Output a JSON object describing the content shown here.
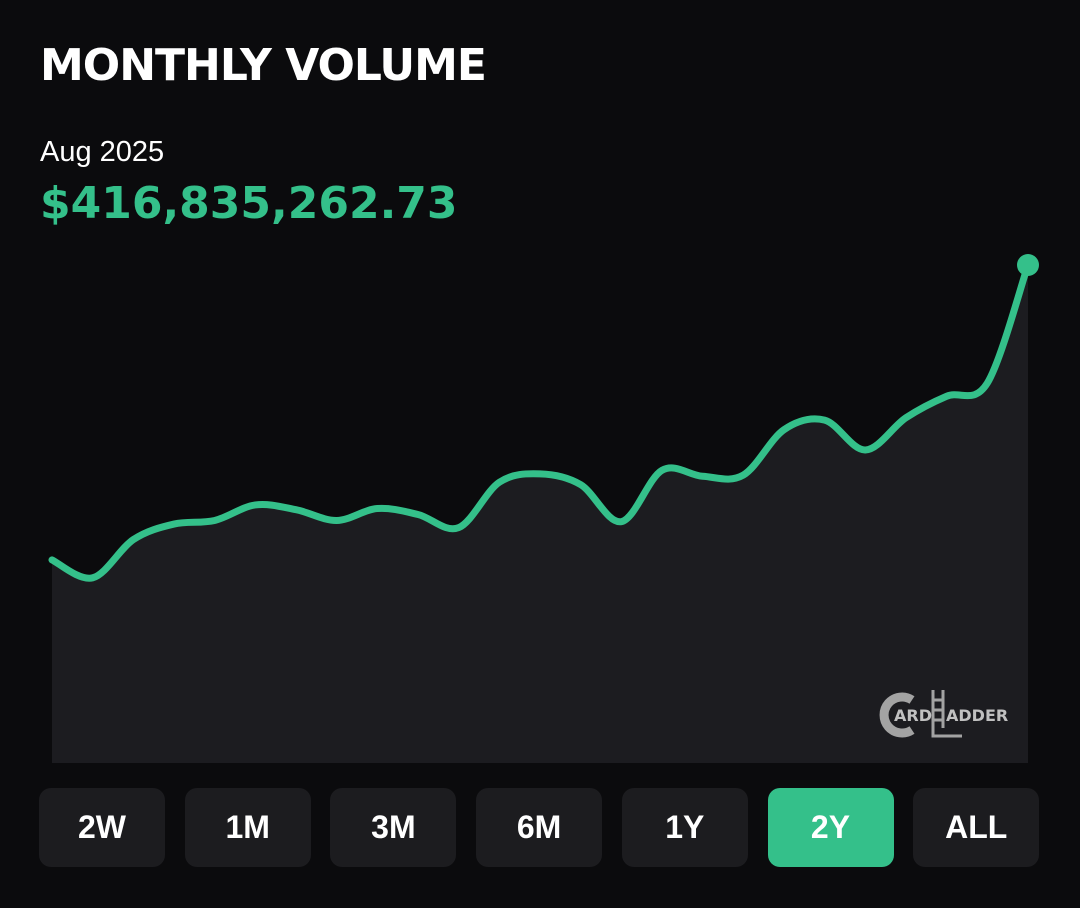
{
  "title": "MONTHLY VOLUME",
  "header": {
    "date": "Aug 2025",
    "value": "$416,835,262.73"
  },
  "chart_data": {
    "type": "area",
    "color": "#34c08a",
    "fill": "#1c1c20",
    "values": [
      170000000,
      155000000,
      187000000,
      200000000,
      203000000,
      216000000,
      212000000,
      203000000,
      213000000,
      208000000,
      197000000,
      235000000,
      242000000,
      233000000,
      202000000,
      245000000,
      240000000,
      241000000,
      279000000,
      287000000,
      262000000,
      289000000,
      307000000,
      318000000,
      416835262.73
    ],
    "ylim": [
      0,
      416835262.73
    ],
    "end_marker": true
  },
  "logo": {
    "left": "ARD",
    "right": "ADDER"
  },
  "ranges": [
    "2W",
    "1M",
    "3M",
    "6M",
    "1Y",
    "2Y",
    "ALL"
  ],
  "active_range": 5
}
